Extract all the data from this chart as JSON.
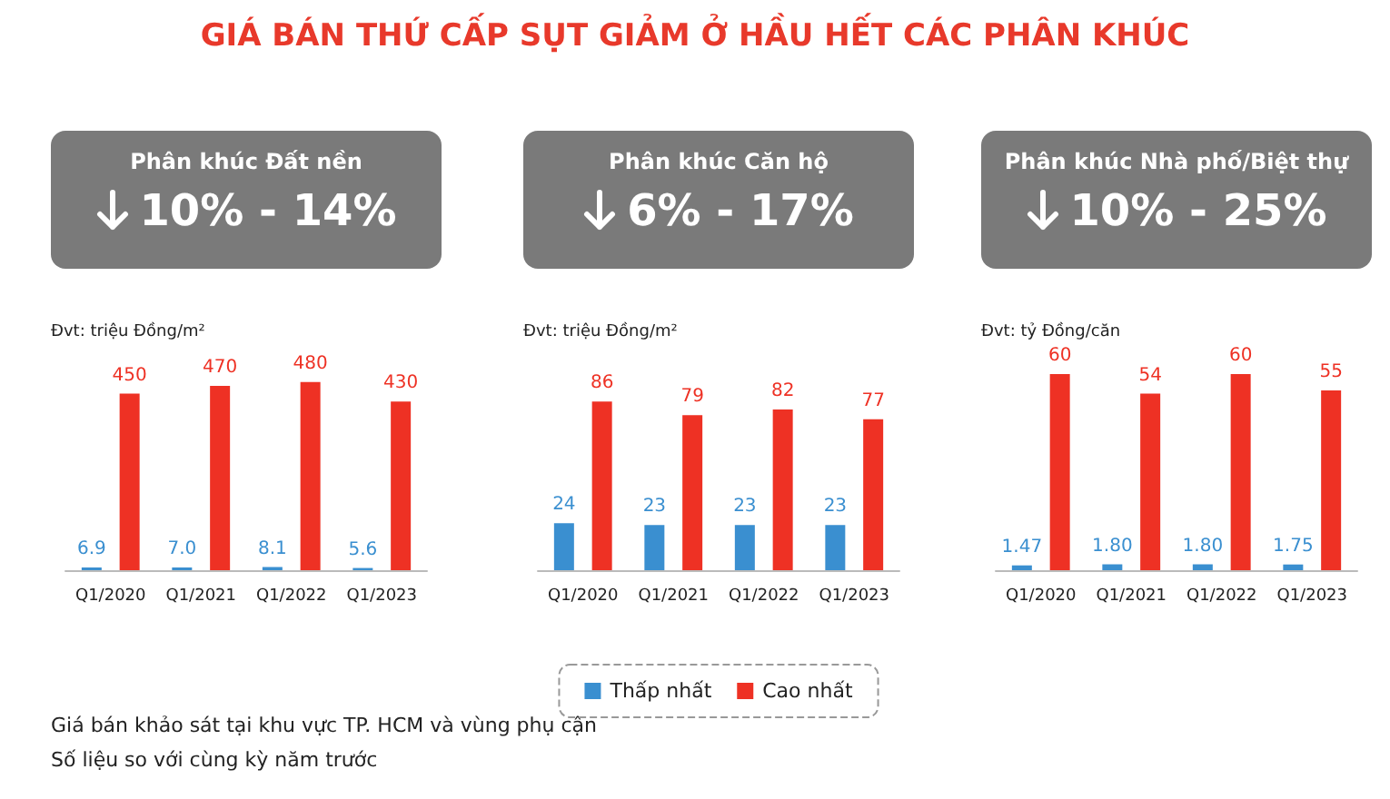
{
  "chart_data": [
    {
      "type": "other",
      "title": "GIÁ BÁN THỨ CẤP SỤT GIẢM Ở HẦU HẾT CÁC PHÂN KHÚC",
      "annotations": [
        "Giá bán khảo sát tại khu vực TP. HCM và vùng phụ cận",
        "Số liệu so với cùng kỳ năm trước"
      ]
    },
    {
      "type": "bar",
      "title": "Phân khúc Đất nền",
      "subtitle": "10% - 14%",
      "ylabel": "Đvt: triệu Đồng/m²",
      "categories": [
        "Q1/2020",
        "Q1/2021",
        "Q1/2022",
        "Q1/2023"
      ],
      "series": [
        {
          "color": "#3a8fd0",
          "values": [
            6.9,
            7.0,
            8.1,
            5.6
          ],
          "value_labels": [
            "6.9",
            "7.0",
            "8.1",
            "5.6"
          ]
        },
        {
          "color": "#ee3124",
          "values": [
            450,
            470,
            480,
            430
          ],
          "value_labels": [
            "450",
            "470",
            "480",
            "430"
          ]
        }
      ],
      "legend": false
    },
    {
      "type": "bar",
      "title": "Phân khúc Căn hộ",
      "subtitle": "6% - 17%",
      "ylabel": "Đvt: triệu Đồng/m²",
      "categories": [
        "Q1/2020",
        "Q1/2021",
        "Q1/2022",
        "Q1/2023"
      ],
      "series": [
        {
          "name": "Thấp nhất",
          "color": "#3a8fd0",
          "values": [
            24,
            23,
            23,
            23
          ],
          "value_labels": [
            "24",
            "23",
            "23",
            "23"
          ]
        },
        {
          "name": "Cao nhất",
          "color": "#ee3124",
          "values": [
            86,
            79,
            82,
            77
          ],
          "value_labels": [
            "86",
            "79",
            "82",
            "77"
          ]
        }
      ],
      "legend": "bottom"
    },
    {
      "type": "bar",
      "title": "Phân khúc Nhà phố/Biệt thự",
      "subtitle": "10% - 25%",
      "ylabel": "Đvt: tỷ Đồng/căn",
      "categories": [
        "Q1/2020",
        "Q1/2021",
        "Q1/2022",
        "Q1/2023"
      ],
      "series": [
        {
          "color": "#3a8fd0",
          "values": [
            1.47,
            1.8,
            1.8,
            1.75
          ],
          "value_labels": [
            "1.47",
            "1.80",
            "1.80",
            "1.75"
          ]
        },
        {
          "color": "#ee3124",
          "values": [
            60,
            54,
            60,
            55
          ],
          "value_labels": [
            "60",
            "54",
            "60",
            "55"
          ]
        }
      ],
      "legend": false
    }
  ]
}
